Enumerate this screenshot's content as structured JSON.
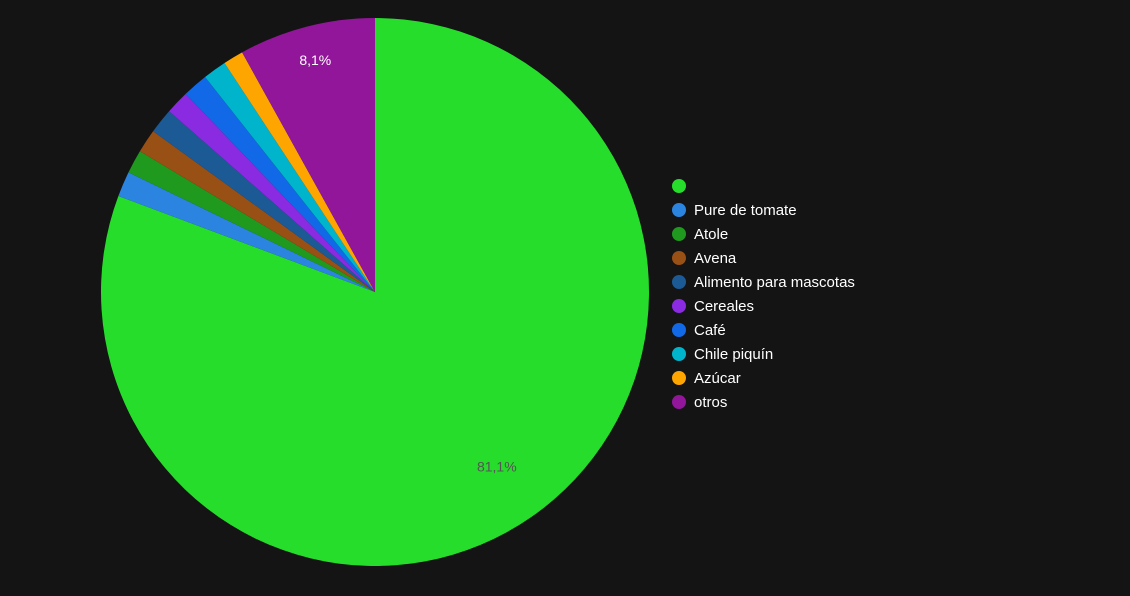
{
  "chart_data": {
    "type": "pie",
    "title": "",
    "series": [
      {
        "label": "",
        "value": 81.1,
        "color": "#27dd2b",
        "label_text": "81,1%"
      },
      {
        "label": "Pure de tomate",
        "value": 1.5,
        "color": "#2b85e0"
      },
      {
        "label": "Atole",
        "value": 1.4,
        "color": "#1f9a1f"
      },
      {
        "label": "Avena",
        "value": 1.4,
        "color": "#995015"
      },
      {
        "label": "Alimento para mascotas",
        "value": 1.5,
        "color": "#1c5a96"
      },
      {
        "label": "Cereales",
        "value": 1.4,
        "color": "#8a2be2"
      },
      {
        "label": "Café",
        "value": 1.5,
        "color": "#1269e8"
      },
      {
        "label": "Chile piquín",
        "value": 1.4,
        "color": "#00b4cc"
      },
      {
        "label": "Azúcar",
        "value": 1.2,
        "color": "#ffa500"
      },
      {
        "label": "otros",
        "value": 8.1,
        "color": "#921699",
        "label_text": "8,1%"
      }
    ],
    "legend_position": "right"
  }
}
